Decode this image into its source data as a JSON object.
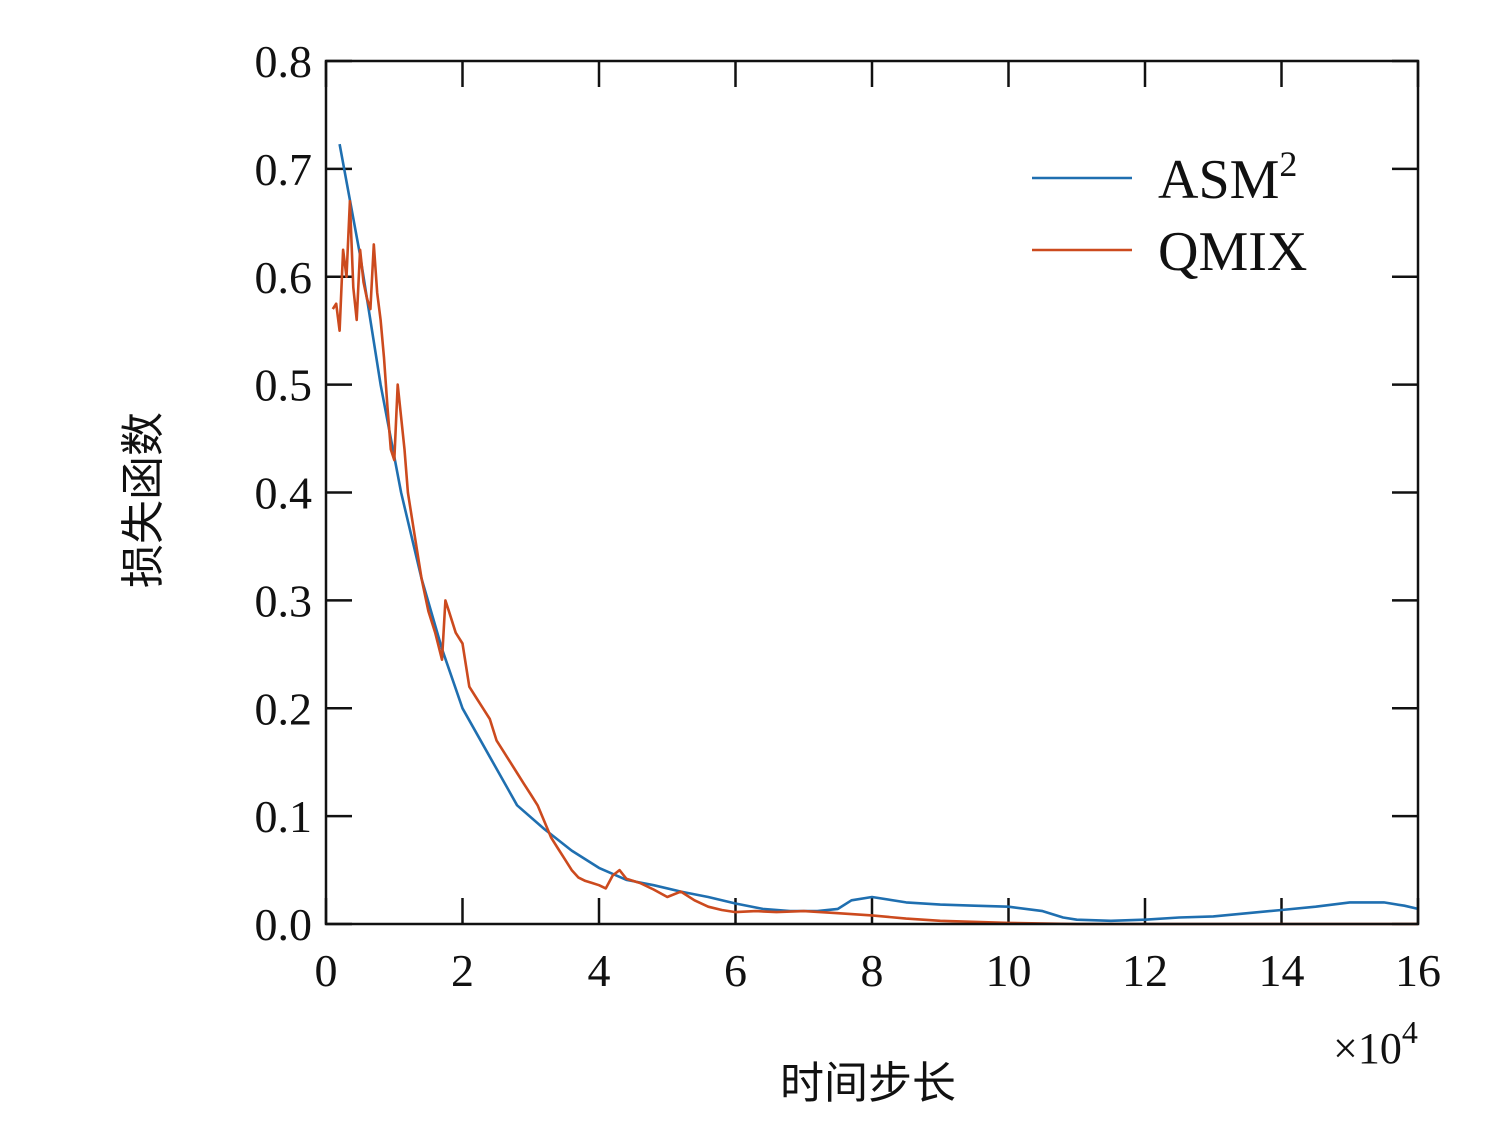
{
  "chart_data": {
    "type": "line",
    "title": "",
    "xlabel": "时间步长",
    "ylabel": "损失函数",
    "x_multiplier": "×10",
    "x_multiplier_exp": "4",
    "xlim": [
      0,
      16
    ],
    "ylim": [
      0,
      0.8
    ],
    "xticks": [
      "0",
      "2",
      "4",
      "6",
      "8",
      "10",
      "12",
      "14",
      "16"
    ],
    "yticks": [
      "0.0",
      "0.1",
      "0.2",
      "0.3",
      "0.4",
      "0.5",
      "0.6",
      "0.7",
      "0.8"
    ],
    "grid": false,
    "legend_position": "top-right",
    "colors": {
      "ASM2": "#1f6fb0",
      "QMIX": "#cc4a1e",
      "axis": "#111111"
    },
    "series": [
      {
        "name": "ASM",
        "name_sup": "2",
        "key": "ASM2",
        "x": [
          0.2,
          0.5,
          0.8,
          1.1,
          1.4,
          1.7,
          2.0,
          2.4,
          2.8,
          3.2,
          3.6,
          4.0,
          4.4,
          4.8,
          5.2,
          5.6,
          6.0,
          6.4,
          6.8,
          7.2,
          7.5,
          7.7,
          8.0,
          8.5,
          9.0,
          9.5,
          10.0,
          10.5,
          10.8,
          11.0,
          11.5,
          12.0,
          12.5,
          13.0,
          13.5,
          14.0,
          14.5,
          15.0,
          15.5,
          15.8,
          16.0
        ],
        "y": [
          0.723,
          0.62,
          0.5,
          0.4,
          0.32,
          0.255,
          0.2,
          0.155,
          0.11,
          0.088,
          0.068,
          0.052,
          0.041,
          0.036,
          0.03,
          0.025,
          0.019,
          0.014,
          0.012,
          0.012,
          0.014,
          0.022,
          0.025,
          0.02,
          0.018,
          0.017,
          0.016,
          0.012,
          0.006,
          0.004,
          0.003,
          0.004,
          0.006,
          0.007,
          0.01,
          0.013,
          0.016,
          0.02,
          0.02,
          0.017,
          0.014
        ]
      },
      {
        "name": "QMIX",
        "key": "QMIX",
        "x": [
          0.1,
          0.15,
          0.2,
          0.25,
          0.3,
          0.35,
          0.4,
          0.45,
          0.5,
          0.55,
          0.6,
          0.65,
          0.7,
          0.75,
          0.8,
          0.85,
          0.9,
          0.95,
          1.0,
          1.05,
          1.1,
          1.15,
          1.2,
          1.3,
          1.4,
          1.5,
          1.6,
          1.7,
          1.75,
          1.8,
          1.9,
          2.0,
          2.1,
          2.2,
          2.3,
          2.4,
          2.5,
          2.6,
          2.7,
          2.8,
          2.9,
          3.0,
          3.1,
          3.2,
          3.3,
          3.4,
          3.5,
          3.6,
          3.7,
          3.8,
          3.9,
          4.0,
          4.1,
          4.2,
          4.3,
          4.4,
          4.5,
          4.6,
          4.8,
          5.0,
          5.2,
          5.4,
          5.6,
          5.8,
          6.0,
          6.3,
          6.6,
          7.0,
          7.5,
          8.0,
          8.5,
          9.0,
          10.0,
          11.0,
          12.0,
          13.0,
          14.0,
          15.0,
          16.0
        ],
        "y": [
          0.57,
          0.575,
          0.55,
          0.625,
          0.6,
          0.67,
          0.59,
          0.56,
          0.625,
          0.595,
          0.58,
          0.57,
          0.63,
          0.585,
          0.56,
          0.525,
          0.48,
          0.44,
          0.43,
          0.5,
          0.47,
          0.44,
          0.4,
          0.36,
          0.32,
          0.29,
          0.27,
          0.245,
          0.3,
          0.29,
          0.27,
          0.26,
          0.22,
          0.21,
          0.2,
          0.19,
          0.17,
          0.16,
          0.15,
          0.14,
          0.13,
          0.12,
          0.11,
          0.095,
          0.08,
          0.07,
          0.06,
          0.05,
          0.043,
          0.04,
          0.038,
          0.036,
          0.033,
          0.045,
          0.05,
          0.042,
          0.04,
          0.038,
          0.032,
          0.025,
          0.03,
          0.022,
          0.016,
          0.013,
          0.011,
          0.012,
          0.011,
          0.012,
          0.01,
          0.008,
          0.005,
          0.003,
          0.001,
          0.0,
          0.0,
          0.0,
          0.0,
          0.0,
          0.0
        ]
      }
    ]
  }
}
